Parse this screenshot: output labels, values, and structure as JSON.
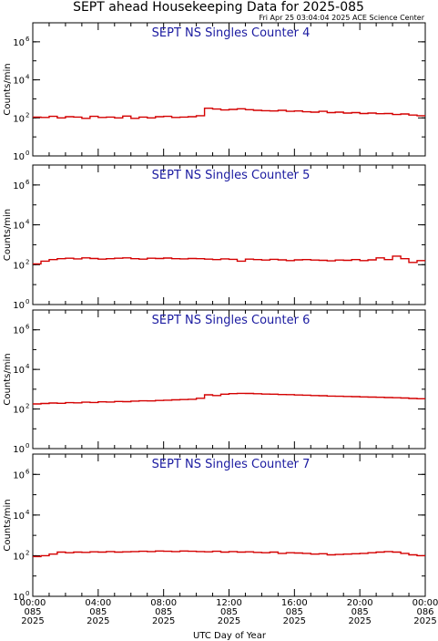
{
  "title": "SEPT ahead Housekeeping Data for 2025-085",
  "subtitle": "Fri Apr 25 03:04:04 2025 ACE Science Center",
  "x_axis_label": "UTC Day of Year",
  "x_ticks": [
    {
      "hours": 0,
      "time": "00:00",
      "doy": "085",
      "year": "2025"
    },
    {
      "hours": 4,
      "time": "04:00",
      "doy": "085",
      "year": "2025"
    },
    {
      "hours": 8,
      "time": "08:00",
      "doy": "085",
      "year": "2025"
    },
    {
      "hours": 12,
      "time": "12:00",
      "doy": "085",
      "year": "2025"
    },
    {
      "hours": 16,
      "time": "16:00",
      "doy": "085",
      "year": "2025"
    },
    {
      "hours": 20,
      "time": "20:00",
      "doy": "085",
      "year": "2025"
    },
    {
      "hours": 24,
      "time": "00:00",
      "doy": "086",
      "year": "2025"
    }
  ],
  "line_color": "#d40000",
  "title_color": "#1a1aa0",
  "chart_data": [
    {
      "type": "line",
      "step": true,
      "title": "SEPT NS Singles Counter 4",
      "ylabel": "Counts/min",
      "yscale": "log",
      "ylim": [
        1,
        10000000
      ],
      "xlim_hours": [
        0,
        24
      ],
      "y_ticks": [
        {
          "value": 1,
          "base": "10",
          "exp": "0"
        },
        {
          "value": 100,
          "base": "10",
          "exp": "2"
        },
        {
          "value": 10000,
          "base": "10",
          "exp": "4"
        },
        {
          "value": 1000000,
          "base": "10",
          "exp": "6"
        }
      ],
      "x": [
        0,
        0.5,
        1,
        1.5,
        2,
        2.5,
        3,
        3.5,
        4,
        4.5,
        5,
        5.5,
        6,
        6.5,
        7,
        7.5,
        8,
        8.5,
        9,
        9.5,
        10,
        10.5,
        11,
        11.5,
        12,
        12.5,
        13,
        13.5,
        14,
        14.5,
        15,
        15.5,
        16,
        16.5,
        17,
        17.5,
        18,
        18.5,
        19,
        19.5,
        20,
        20.5,
        21,
        21.5,
        22,
        22.5,
        23,
        23.5
      ],
      "values": [
        110,
        105,
        120,
        100,
        115,
        110,
        95,
        120,
        105,
        110,
        100,
        125,
        95,
        110,
        100,
        115,
        120,
        105,
        110,
        115,
        130,
        320,
        290,
        260,
        280,
        300,
        270,
        250,
        240,
        230,
        250,
        220,
        230,
        210,
        200,
        220,
        190,
        200,
        180,
        190,
        170,
        180,
        165,
        170,
        150,
        160,
        140,
        130
      ]
    },
    {
      "type": "line",
      "step": true,
      "title": "SEPT NS Singles Counter 5",
      "ylabel": "Counts/min",
      "yscale": "log",
      "ylim": [
        1,
        10000000
      ],
      "xlim_hours": [
        0,
        24
      ],
      "y_ticks": [
        {
          "value": 1,
          "base": "10",
          "exp": "0"
        },
        {
          "value": 100,
          "base": "10",
          "exp": "2"
        },
        {
          "value": 10000,
          "base": "10",
          "exp": "4"
        },
        {
          "value": 1000000,
          "base": "10",
          "exp": "6"
        }
      ],
      "x": [
        0,
        0.5,
        1,
        1.5,
        2,
        2.5,
        3,
        3.5,
        4,
        4.5,
        5,
        5.5,
        6,
        6.5,
        7,
        7.5,
        8,
        8.5,
        9,
        9.5,
        10,
        10.5,
        11,
        11.5,
        12,
        12.5,
        13,
        13.5,
        14,
        14.5,
        15,
        15.5,
        16,
        16.5,
        17,
        17.5,
        18,
        18.5,
        19,
        19.5,
        20,
        20.5,
        21,
        21.5,
        22,
        22.5,
        23,
        23.5
      ],
      "values": [
        110,
        150,
        180,
        200,
        210,
        195,
        220,
        205,
        190,
        200,
        210,
        220,
        200,
        190,
        210,
        205,
        215,
        200,
        195,
        205,
        200,
        190,
        180,
        195,
        185,
        150,
        190,
        180,
        170,
        185,
        175,
        160,
        175,
        180,
        170,
        165,
        155,
        170,
        165,
        180,
        160,
        175,
        220,
        180,
        270,
        200,
        130,
        160
      ]
    },
    {
      "type": "line",
      "step": true,
      "title": "SEPT NS Singles Counter 6",
      "ylabel": "Counts/min",
      "yscale": "log",
      "ylim": [
        1,
        10000000
      ],
      "xlim_hours": [
        0,
        24
      ],
      "y_ticks": [
        {
          "value": 1,
          "base": "10",
          "exp": "0"
        },
        {
          "value": 100,
          "base": "10",
          "exp": "2"
        },
        {
          "value": 10000,
          "base": "10",
          "exp": "4"
        },
        {
          "value": 1000000,
          "base": "10",
          "exp": "6"
        }
      ],
      "x": [
        0,
        0.5,
        1,
        1.5,
        2,
        2.5,
        3,
        3.5,
        4,
        4.5,
        5,
        5.5,
        6,
        6.5,
        7,
        7.5,
        8,
        8.5,
        9,
        9.5,
        10,
        10.5,
        11,
        11.5,
        12,
        12.5,
        13,
        13.5,
        14,
        14.5,
        15,
        15.5,
        16,
        16.5,
        17,
        17.5,
        18,
        18.5,
        19,
        19.5,
        20,
        20.5,
        21,
        21.5,
        22,
        22.5,
        23,
        23.5
      ],
      "values": [
        180,
        190,
        200,
        195,
        210,
        205,
        220,
        215,
        230,
        225,
        240,
        235,
        250,
        260,
        255,
        270,
        280,
        290,
        300,
        310,
        350,
        520,
        480,
        560,
        600,
        620,
        610,
        590,
        570,
        560,
        540,
        530,
        510,
        500,
        480,
        470,
        450,
        440,
        430,
        420,
        410,
        400,
        390,
        380,
        370,
        360,
        340,
        330
      ]
    },
    {
      "type": "line",
      "step": true,
      "title": "SEPT NS Singles Counter 7",
      "ylabel": "Counts/min",
      "yscale": "log",
      "ylim": [
        1,
        10000000
      ],
      "xlim_hours": [
        0,
        24
      ],
      "y_ticks": [
        {
          "value": 1,
          "base": "10",
          "exp": "0"
        },
        {
          "value": 100,
          "base": "10",
          "exp": "2"
        },
        {
          "value": 10000,
          "base": "10",
          "exp": "4"
        },
        {
          "value": 1000000,
          "base": "10",
          "exp": "6"
        }
      ],
      "x": [
        0,
        0.5,
        1,
        1.5,
        2,
        2.5,
        3,
        3.5,
        4,
        4.5,
        5,
        5.5,
        6,
        6.5,
        7,
        7.5,
        8,
        8.5,
        9,
        9.5,
        10,
        10.5,
        11,
        11.5,
        12,
        12.5,
        13,
        13.5,
        14,
        14.5,
        15,
        15.5,
        16,
        16.5,
        17,
        17.5,
        18,
        18.5,
        19,
        19.5,
        20,
        20.5,
        21,
        21.5,
        22,
        22.5,
        23,
        23.5
      ],
      "values": [
        90,
        100,
        120,
        150,
        140,
        150,
        145,
        155,
        150,
        160,
        150,
        155,
        160,
        165,
        160,
        170,
        165,
        160,
        170,
        165,
        160,
        155,
        165,
        150,
        160,
        150,
        155,
        145,
        140,
        150,
        130,
        140,
        135,
        130,
        120,
        125,
        110,
        115,
        120,
        125,
        130,
        140,
        150,
        160,
        150,
        130,
        110,
        100
      ]
    }
  ]
}
